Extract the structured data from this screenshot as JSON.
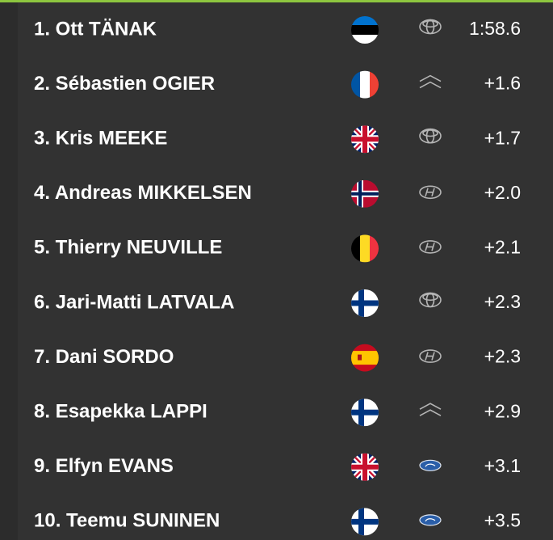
{
  "leaderboard": {
    "rows": [
      {
        "name": "1. Ott TÄNAK",
        "time": "1:58.6"
      },
      {
        "name": "2. Sébastien OGIER",
        "time": "+1.6"
      },
      {
        "name": "3. Kris MEEKE",
        "time": "+1.7"
      },
      {
        "name": "4. Andreas MIKKELSEN",
        "time": "+2.0"
      },
      {
        "name": "5. Thierry NEUVILLE",
        "time": "+2.1"
      },
      {
        "name": "6. Jari-Matti LATVALA",
        "time": "+2.3"
      },
      {
        "name": "7. Dani SORDO",
        "time": "+2.3"
      },
      {
        "name": "8. Esapekka LAPPI",
        "time": "+2.9"
      },
      {
        "name": "9. Elfyn EVANS",
        "time": "+3.1"
      },
      {
        "name": "10. Teemu SUNINEN",
        "time": "+3.5"
      }
    ]
  }
}
